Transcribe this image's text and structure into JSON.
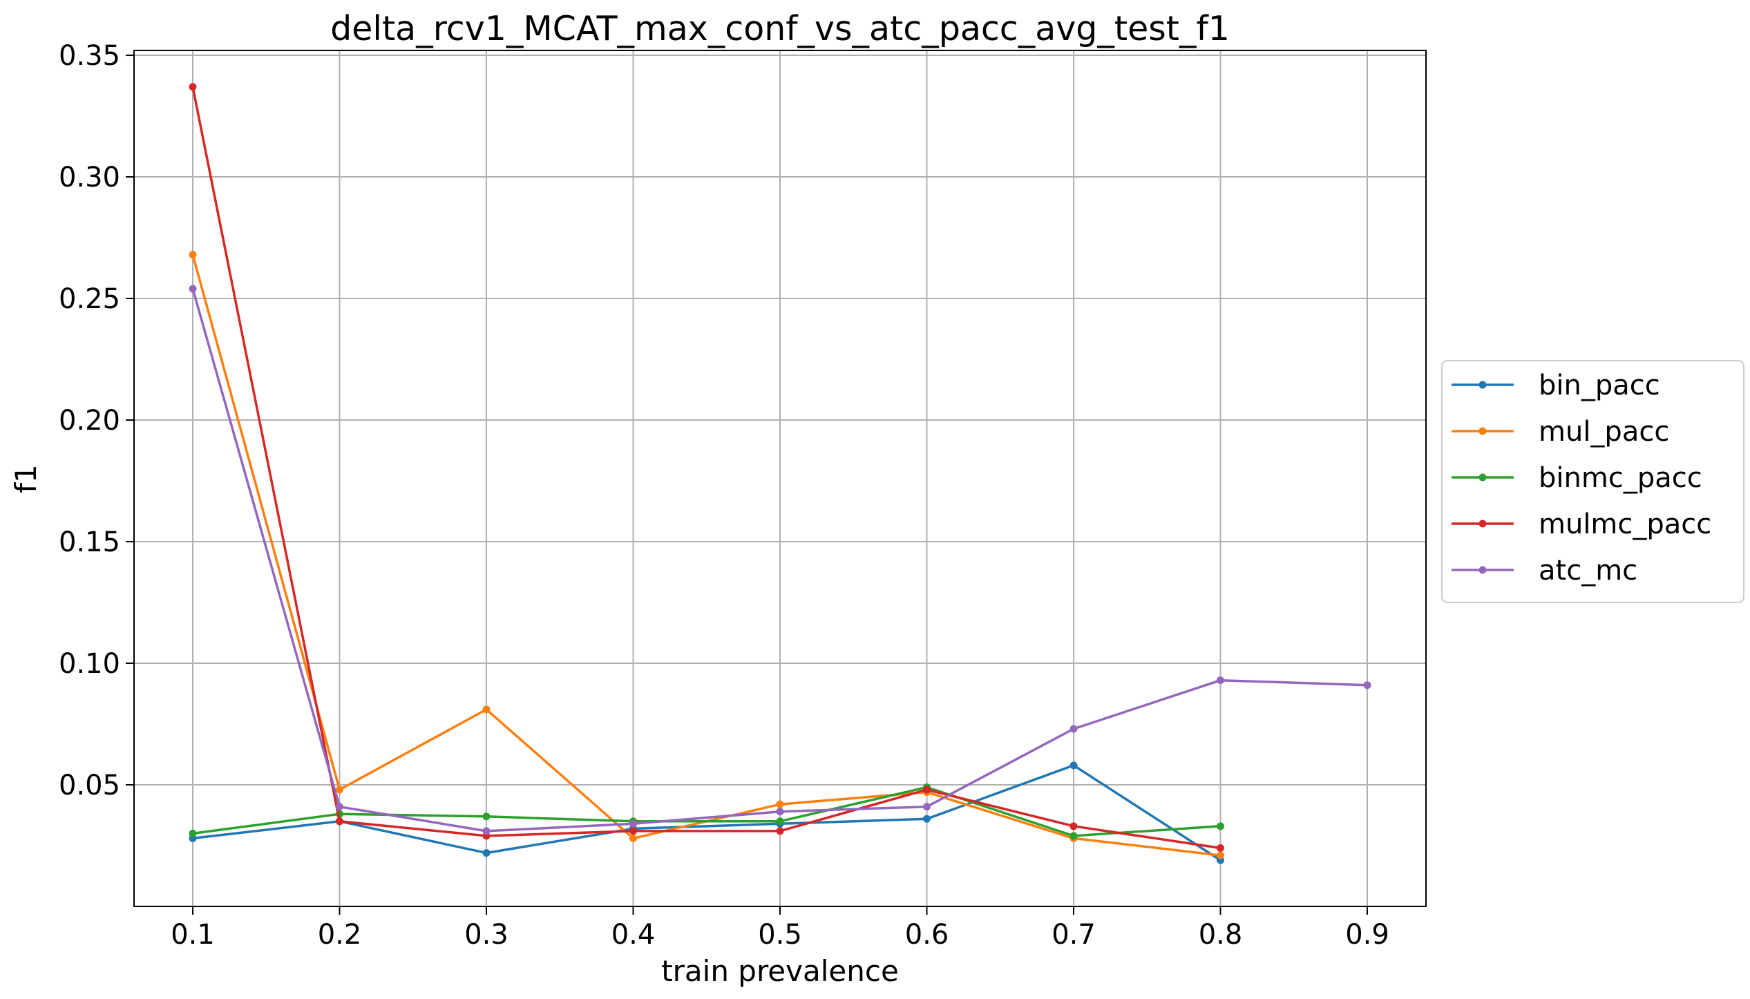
{
  "chart_data": {
    "type": "line",
    "title": "delta_rcv1_MCAT_max_conf_vs_atc_pacc_avg_test_f1",
    "xlabel": "train prevalence",
    "ylabel": "f1",
    "xlim": [
      0.06,
      0.94
    ],
    "ylim": [
      0.0,
      0.352
    ],
    "xticks": [
      0.1,
      0.2,
      0.3,
      0.4,
      0.5,
      0.6,
      0.7,
      0.8,
      0.9
    ],
    "xtick_labels": [
      "0.1",
      "0.2",
      "0.3",
      "0.4",
      "0.5",
      "0.6",
      "0.7",
      "0.8",
      "0.9"
    ],
    "yticks": [
      0.05,
      0.1,
      0.15,
      0.2,
      0.25,
      0.3,
      0.35
    ],
    "ytick_labels": [
      "0.05",
      "0.10",
      "0.15",
      "0.20",
      "0.25",
      "0.30",
      "0.35"
    ],
    "grid": true,
    "legend_position": "center-right-outside",
    "series": [
      {
        "name": "bin_pacc",
        "color": "#1f77b4",
        "x": [
          0.1,
          0.2,
          0.3,
          0.4,
          0.5,
          0.6,
          0.7,
          0.8
        ],
        "y": [
          0.028,
          0.035,
          0.022,
          0.032,
          0.034,
          0.036,
          0.058,
          0.019
        ]
      },
      {
        "name": "mul_pacc",
        "color": "#ff7f0e",
        "x": [
          0.1,
          0.2,
          0.3,
          0.4,
          0.5,
          0.6,
          0.7,
          0.8
        ],
        "y": [
          0.268,
          0.048,
          0.081,
          0.028,
          0.042,
          0.047,
          0.028,
          0.021
        ]
      },
      {
        "name": "binmc_pacc",
        "color": "#2ca02c",
        "x": [
          0.1,
          0.2,
          0.3,
          0.4,
          0.5,
          0.6,
          0.7,
          0.8
        ],
        "y": [
          0.03,
          0.038,
          0.037,
          0.035,
          0.035,
          0.049,
          0.029,
          0.033
        ]
      },
      {
        "name": "mulmc_pacc",
        "color": "#d62728",
        "x": [
          0.1,
          0.2,
          0.3,
          0.4,
          0.5,
          0.6,
          0.7,
          0.8
        ],
        "y": [
          0.337,
          0.035,
          0.029,
          0.031,
          0.031,
          0.048,
          0.033,
          0.024
        ]
      },
      {
        "name": "atc_mc",
        "color": "#9467bd",
        "x": [
          0.1,
          0.2,
          0.3,
          0.4,
          0.5,
          0.6,
          0.7,
          0.8,
          0.9
        ],
        "y": [
          0.254,
          0.041,
          0.031,
          0.034,
          0.039,
          0.041,
          0.073,
          0.093,
          0.091
        ]
      }
    ]
  }
}
